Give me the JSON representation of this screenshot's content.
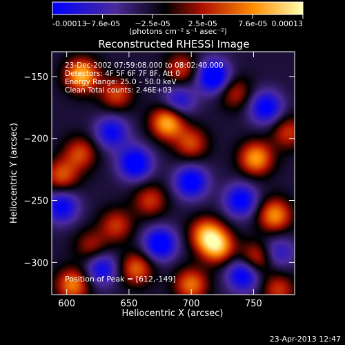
{
  "chart_data": {
    "type": "heatmap",
    "title": "Reconstructed RHESSI Image",
    "xlabel": "Heliocentric X (arcsec)",
    "ylabel": "Heliocentric Y (arcsec)",
    "xlim": [
      588,
      783
    ],
    "ylim": [
      -326,
      -130
    ],
    "xticks": [
      600,
      650,
      700,
      750
    ],
    "yticks": [
      -150,
      -200,
      -250,
      -300
    ],
    "colorbar": {
      "range": [
        -0.00013,
        0.00013
      ],
      "ticks": [
        "-0.00013",
        "−7.6e-05",
        "−2.5e-05",
        "2.5e-05",
        "7.6e-05",
        "0.00013"
      ],
      "unit_label": "(photons cm⁻² s⁻¹ asec⁻²)",
      "colormap": [
        "#0000ff",
        "#4b2a9a",
        "#000000",
        "#b01000",
        "#ff8c00",
        "#ffffb0"
      ]
    },
    "info": [
      "23-Dec-2002 07:59:08.000 to 08:02:40.000",
      "Detectors: 4F 5F 6F 7F 8F, Att 0",
      "Energy Range: 25.0 – 50.0 keV",
      "Clean    Total counts: 2.46E+03"
    ],
    "peak_label": "Position of Peak = [612,-149]",
    "peak": [
      612,
      -149
    ],
    "sources": [
      {
        "x": 612,
        "y": -149,
        "v": 1.0
      },
      {
        "x": 681,
        "y": -187,
        "v": 1.0
      },
      {
        "x": 752,
        "y": -216,
        "v": 0.9
      },
      {
        "x": 712,
        "y": -277,
        "v": 0.8
      },
      {
        "x": 721,
        "y": -287,
        "v": 0.95
      },
      {
        "x": 767,
        "y": -262,
        "v": 0.85
      },
      {
        "x": 611,
        "y": -212,
        "v": 0.6
      },
      {
        "x": 596,
        "y": -230,
        "v": 0.65
      },
      {
        "x": 640,
        "y": -270,
        "v": 0.55
      },
      {
        "x": 656,
        "y": -305,
        "v": 0.7
      },
      {
        "x": 605,
        "y": -318,
        "v": 0.8
      },
      {
        "x": 700,
        "y": -318,
        "v": 0.75
      },
      {
        "x": 752,
        "y": -297,
        "v": 0.65
      },
      {
        "x": 640,
        "y": -164,
        "v": 0.6
      },
      {
        "x": 735,
        "y": -163,
        "v": 0.5
      },
      {
        "x": 778,
        "y": -195,
        "v": 0.55
      },
      {
        "x": 667,
        "y": -250,
        "v": 0.55
      },
      {
        "x": 700,
        "y": -204,
        "v": 0.6
      },
      {
        "x": 620,
        "y": -287,
        "v": 0.45
      },
      {
        "x": 770,
        "y": -322,
        "v": 0.55
      },
      {
        "x": 692,
        "y": -144,
        "v": 0.55
      }
    ],
    "minima": [
      {
        "x": 718,
        "y": -150,
        "v": -1.0
      },
      {
        "x": 760,
        "y": -175,
        "v": -0.8
      },
      {
        "x": 636,
        "y": -195,
        "v": -0.7
      },
      {
        "x": 655,
        "y": -220,
        "v": -0.9
      },
      {
        "x": 700,
        "y": -235,
        "v": -0.85
      },
      {
        "x": 596,
        "y": -255,
        "v": -0.75
      },
      {
        "x": 740,
        "y": -250,
        "v": -0.8
      },
      {
        "x": 675,
        "y": -285,
        "v": -0.9
      },
      {
        "x": 742,
        "y": -310,
        "v": -0.85
      },
      {
        "x": 628,
        "y": -305,
        "v": -0.7
      },
      {
        "x": 690,
        "y": -170,
        "v": -0.6
      },
      {
        "x": 770,
        "y": -292,
        "v": -0.5
      }
    ]
  },
  "footer": {
    "timestamp": "23-Apr-2013 12:47"
  }
}
